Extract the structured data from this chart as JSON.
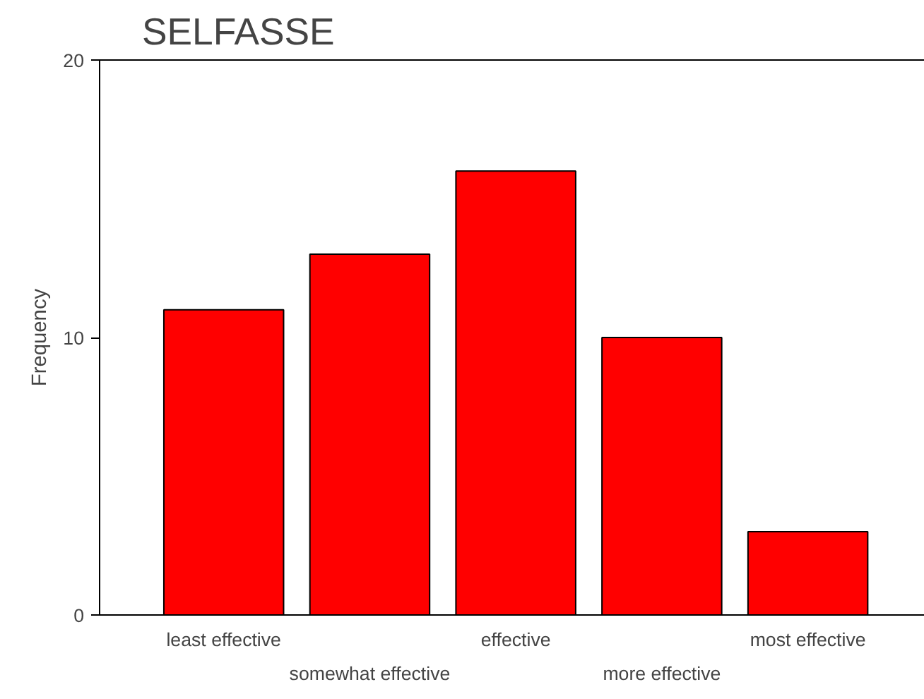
{
  "chart_data": {
    "type": "bar",
    "title": "SELFASSE",
    "ylabel": "Frequency",
    "categories": [
      "least effective",
      "somewhat effective",
      "effective",
      "more effective",
      "most effective"
    ],
    "values": [
      11,
      13,
      16,
      10,
      3
    ],
    "color": "#ff0000",
    "ylim": [
      0,
      20
    ],
    "yticks": [
      0,
      10,
      20
    ],
    "grid": false
  }
}
